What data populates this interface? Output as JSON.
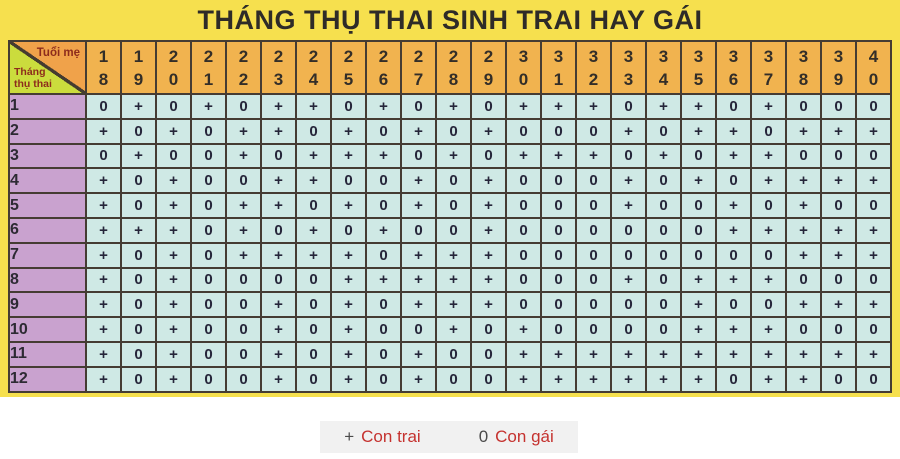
{
  "title": "THÁNG THỤ THAI SINH TRAI HAY GÁI",
  "chart_data": {
    "type": "table",
    "title": "THÁNG THỤ THAI SINH TRAI HAY GÁI",
    "corner": {
      "top_label": "Tuổi mẹ",
      "bottom_label": "Tháng thụ thai"
    },
    "columns": [
      "18",
      "19",
      "20",
      "21",
      "22",
      "23",
      "24",
      "25",
      "26",
      "27",
      "28",
      "29",
      "30",
      "31",
      "32",
      "33",
      "34",
      "35",
      "36",
      "37",
      "38",
      "39",
      "40"
    ],
    "rows": [
      {
        "month": "1",
        "cells": "0 + 0 + 0 + + 0 + 0 + 0 + + + 0 + + 0 + 0 0 0"
      },
      {
        "month": "2",
        "cells": "+ 0 + 0 + + 0 + 0 + 0 + 0 0 0 + 0 + + 0 + + +"
      },
      {
        "month": "3",
        "cells": "0 + 0 0 + 0 + + + 0 + 0 + + + 0 + 0 + + 0 0 0"
      },
      {
        "month": "4",
        "cells": "+ 0 + 0 0 + + 0 0 + 0 + 0 0 0 + 0 + 0 + + + +"
      },
      {
        "month": "5",
        "cells": "+ 0 + 0 + + 0 + 0 + 0 + 0 0 0 + 0 0 + 0 + 0 0"
      },
      {
        "month": "6",
        "cells": "+ + + 0 + 0 + 0 + 0 0 + 0 0 0 0 0 0 + + + + +"
      },
      {
        "month": "7",
        "cells": "+ 0 + 0 + + + + 0 + + + 0 0 0 0 0 0 0 0 + + +"
      },
      {
        "month": "8",
        "cells": "+ 0 + 0 0 0 0 + + + + + 0 0 0 + 0 + + + 0 0 0"
      },
      {
        "month": "9",
        "cells": "+ 0 + 0 0 + 0 + 0 + + + 0 0 0 0 0 + 0 0 + + +"
      },
      {
        "month": "10",
        "cells": "+ 0 + 0 0 + 0 + 0 0 + 0 + 0 0 0 0 + + + 0 0 0"
      },
      {
        "month": "11",
        "cells": "+ 0 + 0 0 + 0 + 0 + 0 0 + + + + + + + + + + +"
      },
      {
        "month": "12",
        "cells": "+ 0 + 0 0 + 0 + 0 + 0 0 + + + + + + 0 + + 0 0"
      }
    ],
    "legend": [
      {
        "symbol": "+",
        "label": "Con trai"
      },
      {
        "symbol": "0",
        "label": "Con gái"
      }
    ]
  },
  "colors": {
    "page_background": "#f6e04e",
    "header_cell": "#f1b34f",
    "corner_top": "#f0a24a",
    "corner_bottom": "#cbdc3d",
    "month_cell": "#c9a2cf",
    "data_cell": "#cfe9e5",
    "grid_border": "#453c33",
    "legend_text": "#c5322f"
  }
}
